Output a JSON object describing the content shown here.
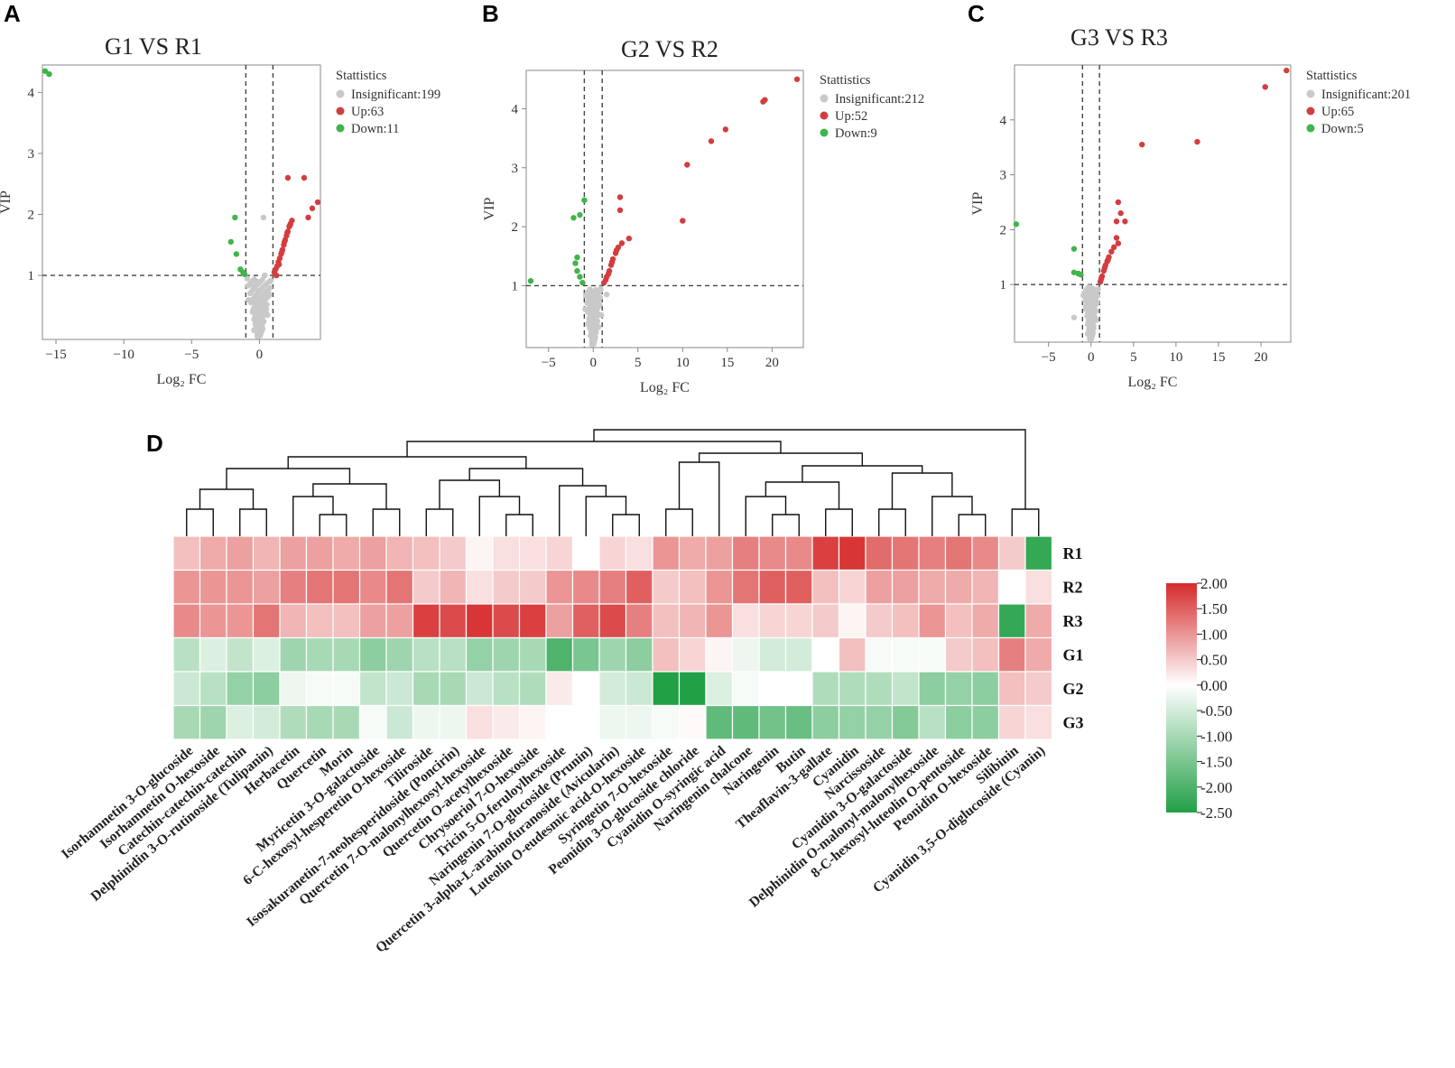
{
  "panel_letters": [
    "A",
    "B",
    "C",
    "D"
  ],
  "chart_data": [
    {
      "type": "scatter",
      "id": "A",
      "title": "G1 VS R1",
      "xlabel": "Log₂ FC",
      "ylabel": "VIP",
      "xlim": [
        -16,
        4.5
      ],
      "ylim": [
        -0.05,
        4.45
      ],
      "xticks": [
        -15,
        -10,
        -5,
        0
      ],
      "yticks": [
        1,
        2,
        3,
        4
      ],
      "fc_threshold": 1,
      "vip_threshold": 1,
      "legend_title": "Stattistics",
      "legend": [
        {
          "label": "Insignificant:199",
          "color": "#c9c9c9"
        },
        {
          "label": "Up:63",
          "color": "#d43d3d"
        },
        {
          "label": "Down:11",
          "color": "#3fb54a"
        }
      ],
      "points": {
        "up": [
          [
            1.1,
            1.05
          ],
          [
            1.2,
            1.1
          ],
          [
            1.3,
            1.15
          ],
          [
            1.4,
            1.22
          ],
          [
            1.5,
            1.28
          ],
          [
            1.6,
            1.35
          ],
          [
            1.7,
            1.42
          ],
          [
            1.8,
            1.5
          ],
          [
            1.9,
            1.58
          ],
          [
            2.0,
            1.65
          ],
          [
            2.1,
            1.72
          ],
          [
            2.2,
            1.8
          ],
          [
            2.3,
            1.85
          ],
          [
            2.4,
            1.9
          ],
          [
            2.1,
            2.6
          ],
          [
            3.3,
            2.6
          ],
          [
            3.9,
            2.1
          ],
          [
            4.3,
            2.2
          ],
          [
            3.6,
            1.95
          ],
          [
            1.25,
            1.0
          ],
          [
            1.45,
            1.18
          ],
          [
            1.65,
            1.38
          ],
          [
            1.85,
            1.55
          ],
          [
            2.05,
            1.7
          ],
          [
            2.25,
            1.82
          ]
        ],
        "down": [
          [
            -15.8,
            4.35
          ],
          [
            -15.5,
            4.3
          ],
          [
            -1.8,
            1.95
          ],
          [
            -2.1,
            1.55
          ],
          [
            -1.7,
            1.35
          ],
          [
            -1.4,
            1.1
          ],
          [
            -1.2,
            1.05
          ],
          [
            -1.1,
            1.02
          ]
        ],
        "insig": [
          [
            0.3,
            1.95
          ],
          [
            -0.3,
            0.2
          ],
          [
            0.2,
            0.15
          ],
          [
            -0.5,
            0.4
          ],
          [
            0.5,
            0.45
          ],
          [
            -0.8,
            0.6
          ],
          [
            0.7,
            0.7
          ],
          [
            -0.2,
            0.9
          ],
          [
            0.4,
            1.0
          ],
          [
            -0.6,
            0.85
          ],
          [
            0,
            0.3
          ],
          [
            0.1,
            0.55
          ],
          [
            -0.1,
            0.75
          ],
          [
            0.6,
            0.35
          ],
          [
            -0.4,
            0.1
          ],
          [
            0.8,
            0.9
          ],
          [
            -0.9,
            0.95
          ],
          [
            0.2,
            0.65
          ]
        ]
      }
    },
    {
      "type": "scatter",
      "id": "B",
      "title": "G2 VS R2",
      "xlabel": "Log₂ FC",
      "ylabel": "VIP",
      "xlim": [
        -7.5,
        23.5
      ],
      "ylim": [
        -0.05,
        4.65
      ],
      "xticks": [
        -5,
        0,
        5,
        10,
        15,
        20
      ],
      "yticks": [
        1,
        2,
        3,
        4
      ],
      "fc_threshold": 1,
      "vip_threshold": 1,
      "legend_title": "Stattistics",
      "legend": [
        {
          "label": "Insignificant:212",
          "color": "#c9c9c9"
        },
        {
          "label": "Up:52",
          "color": "#d43d3d"
        },
        {
          "label": "Down:9",
          "color": "#3fb54a"
        }
      ],
      "points": {
        "up": [
          [
            22.8,
            4.5
          ],
          [
            19.2,
            4.15
          ],
          [
            19.0,
            4.12
          ],
          [
            14.8,
            3.65
          ],
          [
            13.2,
            3.45
          ],
          [
            10.5,
            3.05
          ],
          [
            10.0,
            2.1
          ],
          [
            3.0,
            2.5
          ],
          [
            3.0,
            2.28
          ],
          [
            4.0,
            1.8
          ],
          [
            1.2,
            1.05
          ],
          [
            1.5,
            1.15
          ],
          [
            1.8,
            1.25
          ],
          [
            2.0,
            1.35
          ],
          [
            2.2,
            1.45
          ],
          [
            2.5,
            1.55
          ],
          [
            2.8,
            1.65
          ],
          [
            3.2,
            1.72
          ],
          [
            1.4,
            1.1
          ],
          [
            1.7,
            1.2
          ],
          [
            2.1,
            1.4
          ],
          [
            2.6,
            1.6
          ]
        ],
        "down": [
          [
            -7.0,
            1.08
          ],
          [
            -1.0,
            2.45
          ],
          [
            -1.5,
            2.2
          ],
          [
            -2.2,
            2.15
          ],
          [
            -1.8,
            1.48
          ],
          [
            -2.0,
            1.38
          ],
          [
            -1.5,
            1.15
          ],
          [
            -1.2,
            1.05
          ],
          [
            -1.8,
            1.25
          ]
        ],
        "insig": [
          [
            0.5,
            0.7
          ],
          [
            -0.5,
            0.8
          ],
          [
            0,
            0.4
          ],
          [
            0.3,
            0.2
          ],
          [
            -0.3,
            0.15
          ],
          [
            0.8,
            0.95
          ],
          [
            -0.9,
            0.6
          ],
          [
            0.2,
            0.55
          ],
          [
            -0.6,
            0.35
          ],
          [
            1.5,
            0.85
          ],
          [
            0.6,
            0.3
          ],
          [
            -0.2,
            0.9
          ],
          [
            0.9,
            0.5
          ]
        ]
      }
    },
    {
      "type": "scatter",
      "id": "C",
      "title": "G3 VS R3",
      "xlabel": "Log₂ FC",
      "ylabel": "VIP",
      "xlim": [
        -9,
        23.5
      ],
      "ylim": [
        -0.05,
        5.0
      ],
      "xticks": [
        -5,
        0,
        5,
        10,
        15,
        20
      ],
      "yticks": [
        1,
        2,
        3,
        4
      ],
      "fc_threshold": 1,
      "vip_threshold": 1,
      "legend_title": "Stattistics",
      "legend": [
        {
          "label": "Insignificant:201",
          "color": "#c9c9c9"
        },
        {
          "label": "Up:65",
          "color": "#d43d3d"
        },
        {
          "label": "Down:5",
          "color": "#3fb54a"
        }
      ],
      "points": {
        "up": [
          [
            23.0,
            4.9
          ],
          [
            20.5,
            4.6
          ],
          [
            6.0,
            3.55
          ],
          [
            12.5,
            3.6
          ],
          [
            3.2,
            2.5
          ],
          [
            3.5,
            2.3
          ],
          [
            3.0,
            2.15
          ],
          [
            4.0,
            2.15
          ],
          [
            3.0,
            1.85
          ],
          [
            3.2,
            1.75
          ],
          [
            1.1,
            1.05
          ],
          [
            1.3,
            1.15
          ],
          [
            1.5,
            1.25
          ],
          [
            1.7,
            1.35
          ],
          [
            1.9,
            1.42
          ],
          [
            2.1,
            1.5
          ],
          [
            2.4,
            1.6
          ],
          [
            2.7,
            1.68
          ],
          [
            1.2,
            1.1
          ],
          [
            1.6,
            1.3
          ],
          [
            2.0,
            1.45
          ]
        ],
        "down": [
          [
            -8.8,
            2.1
          ],
          [
            -2.0,
            1.65
          ],
          [
            -2.0,
            1.22
          ],
          [
            -1.5,
            1.2
          ],
          [
            -1.2,
            1.18
          ]
        ],
        "insig": [
          [
            0.3,
            0.2
          ],
          [
            -0.3,
            0.4
          ],
          [
            0.5,
            0.7
          ],
          [
            -0.6,
            0.6
          ],
          [
            0.8,
            0.9
          ],
          [
            -0.9,
            0.8
          ],
          [
            0,
            0.3
          ],
          [
            -2.0,
            0.4
          ],
          [
            0.2,
            0.55
          ],
          [
            -0.4,
            0.1
          ],
          [
            0.6,
            0.35
          ],
          [
            -0.2,
            0.95
          ]
        ]
      }
    },
    {
      "type": "heatmap",
      "id": "D",
      "rows": [
        "R1",
        "R2",
        "R3",
        "G1",
        "G2",
        "G3"
      ],
      "columns": [
        "Isorhamnetin 3-O-glucoside",
        "Isorhamnetin O-hexoside",
        "Catechin-catechin-catechin",
        "Delphinidin 3-O-rutinoside (Tulipanin)",
        "Herbacetin",
        "Quercetin",
        "Morin",
        "Myricetin 3-O-galactoside",
        "6-C-hexosyl-hesperetin O-hexoside",
        "Tiliroside",
        "Isosakuranetin-7-neohesperidoside (Poncirin)",
        "Quercetin 7-O-malonylhexosyl-hexoside",
        "Quercetin O-acetylhexoside",
        "Chrysoeriol 7-O-hexoside",
        "Tricin 5-O-feruloylhexoside",
        "Naringenin 7-O-glucoside (Prunin)",
        "Quercetin 3-alpha-L-arabinofuranoside (Avicularin)",
        "Luteolin O-eudesmic acid-O-hexoside",
        "Syringetin 7-O-hexoside",
        "Peonidin 3-O-glucoside chloride",
        "Cyanidin O-syringic acid",
        "Naringenin chalcone",
        "Naringenin",
        "Butin",
        "Theaflavin-3-gallate",
        "Cyanidin",
        "Narcissoside",
        "Cyanidin 3-O-galactoside",
        "Delphinidin O-malonyl-malonylhexoside",
        "8-C-hexosyl-luteolin O-pentoside",
        "Peonidin O-hexoside",
        "Silibinin",
        "Cyanidin 3,5-O-diglucoside (Cyanin)"
      ],
      "values": [
        [
          0.6,
          0.8,
          0.9,
          0.7,
          0.9,
          0.9,
          0.8,
          0.9,
          0.7,
          0.6,
          0.5,
          0.1,
          0.3,
          0.3,
          0.4,
          0.0,
          0.4,
          0.3,
          1.0,
          0.8,
          0.9,
          1.2,
          1.1,
          1.1,
          1.8,
          1.9,
          1.4,
          1.3,
          1.2,
          1.3,
          1.1,
          0.5,
          -2.3
        ],
        [
          1.0,
          1.0,
          1.0,
          0.9,
          1.2,
          1.3,
          1.3,
          1.1,
          1.3,
          0.5,
          0.7,
          0.3,
          0.5,
          0.5,
          1.0,
          1.1,
          1.2,
          1.5,
          0.5,
          0.6,
          1.0,
          1.3,
          1.5,
          1.5,
          0.6,
          0.4,
          0.9,
          0.9,
          0.8,
          0.8,
          0.7,
          0.0,
          0.3
        ],
        [
          1.1,
          1.0,
          1.0,
          1.3,
          0.7,
          0.6,
          0.6,
          0.9,
          0.9,
          1.8,
          1.7,
          1.9,
          1.7,
          1.8,
          0.9,
          1.5,
          1.7,
          1.2,
          0.6,
          0.7,
          1.0,
          0.3,
          0.4,
          0.4,
          0.5,
          0.1,
          0.5,
          0.6,
          1.0,
          0.6,
          0.8,
          -2.3,
          0.8
        ],
        [
          -0.8,
          -0.4,
          -0.7,
          -0.4,
          -1.1,
          -1.0,
          -1.0,
          -1.3,
          -1.1,
          -0.8,
          -0.8,
          -1.2,
          -1.1,
          -1.0,
          -2.0,
          -1.5,
          -1.1,
          -1.3,
          0.6,
          0.4,
          0.1,
          -0.2,
          -0.5,
          -0.5,
          0.0,
          0.6,
          -0.1,
          -0.1,
          -0.1,
          0.5,
          0.6,
          1.2,
          0.8
        ],
        [
          -0.6,
          -0.8,
          -1.2,
          -1.3,
          -0.2,
          -0.1,
          -0.1,
          -0.7,
          -0.6,
          -1.0,
          -1.0,
          -0.6,
          -0.8,
          -0.9,
          0.2,
          0.0,
          -0.5,
          -0.6,
          -2.5,
          -2.5,
          -0.4,
          -0.1,
          0.0,
          0.0,
          -0.9,
          -0.9,
          -0.9,
          -0.7,
          -1.3,
          -1.2,
          -1.3,
          0.6,
          0.5
        ],
        [
          -1.0,
          -1.1,
          -0.4,
          -0.5,
          -0.9,
          -1.0,
          -1.0,
          -0.1,
          -0.6,
          -0.2,
          -0.2,
          0.3,
          0.2,
          0.1,
          0.0,
          0.0,
          -0.2,
          -0.2,
          -0.1,
          0.05,
          -1.8,
          -1.8,
          -1.6,
          -1.7,
          -1.3,
          -1.2,
          -1.2,
          -1.4,
          -0.8,
          -1.3,
          -1.3,
          0.4,
          0.3
        ]
      ],
      "colorbar": {
        "ticks": [
          "2.00",
          "1.50",
          "1.00",
          "0.50",
          "0.00",
          "-0.50",
          "-1.00",
          "-1.50",
          "-2.00",
          "-2.50"
        ],
        "min": -2.5,
        "max": 2.0,
        "high_color": "#d62b2b",
        "mid_color": "#ffffff",
        "low_color": "#22a046"
      }
    }
  ]
}
